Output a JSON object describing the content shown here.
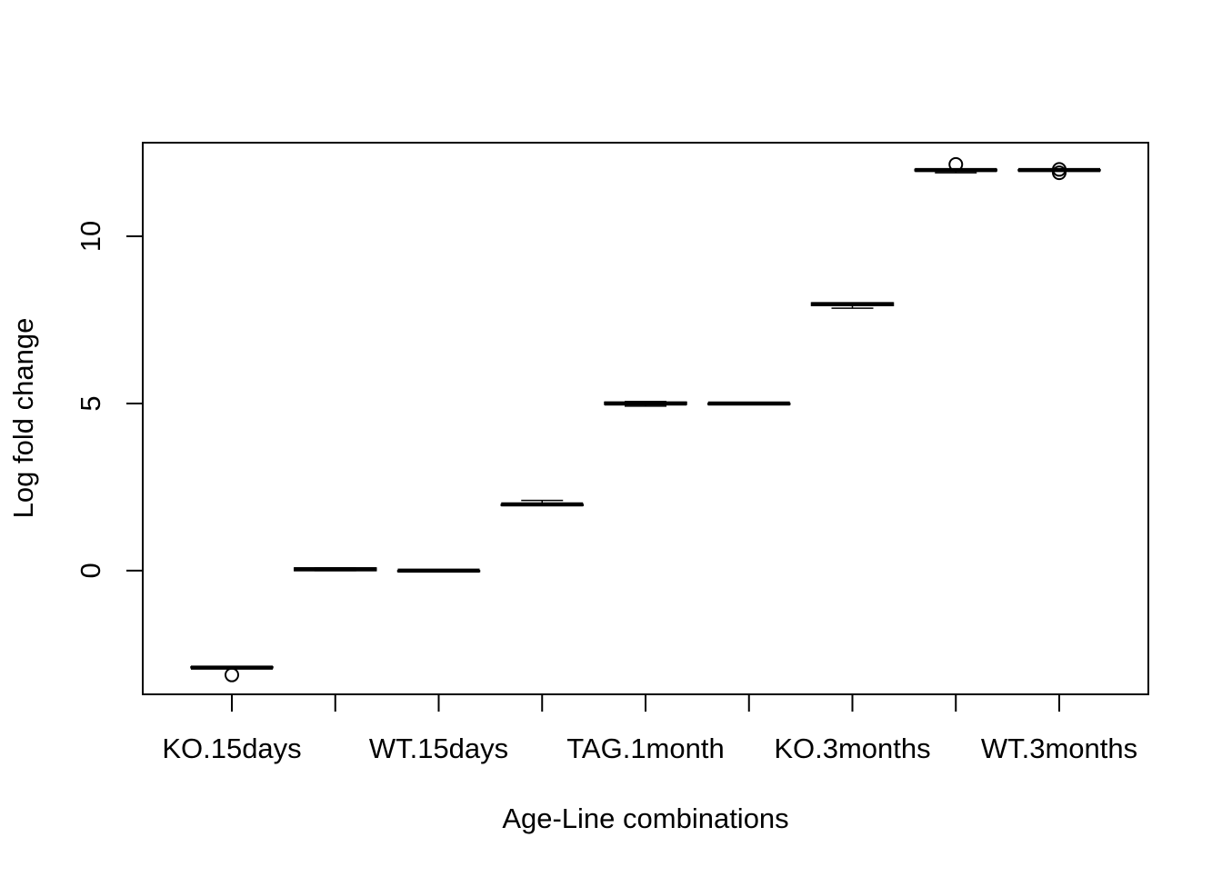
{
  "chart_data": {
    "type": "box",
    "title": "",
    "xlabel": "Age-Line combinations",
    "ylabel": "Log fold change",
    "ylim": [
      -3.7,
      12.8
    ],
    "y_ticks": [
      0,
      5,
      10
    ],
    "y_tick_labels": [
      "0",
      "5",
      "10"
    ],
    "categories": [
      "KO.15days",
      "",
      "WT.15days",
      "",
      "TAG.1month",
      "",
      "KO.3months",
      "",
      "WT.3months"
    ],
    "x_tick_labels": [
      "KO.15days",
      "WT.15days",
      "TAG.1month",
      "KO.3months",
      "WT.3months"
    ],
    "boxes": [
      {
        "min": -2.9,
        "q1": -2.9,
        "median": -2.9,
        "q3": -2.88,
        "max": -2.88,
        "outliers": [
          -3.12
        ]
      },
      {
        "min": 0.0,
        "q1": 0.0,
        "median": 0.04,
        "q3": 0.08,
        "max": 0.08,
        "outliers": []
      },
      {
        "min": 0.0,
        "q1": 0.0,
        "median": 0.0,
        "q3": 0.0,
        "max": 0.0,
        "outliers": []
      },
      {
        "min": 1.95,
        "q1": 1.95,
        "median": 1.98,
        "q3": 1.98,
        "max": 2.1,
        "outliers": []
      },
      {
        "min": 4.92,
        "q1": 4.97,
        "median": 5.0,
        "q3": 5.04,
        "max": 5.06,
        "outliers": []
      },
      {
        "min": 5.0,
        "q1": 5.0,
        "median": 5.0,
        "q3": 5.0,
        "max": 5.0,
        "outliers": []
      },
      {
        "min": 7.85,
        "q1": 7.93,
        "median": 7.97,
        "q3": 8.01,
        "max": 8.01,
        "outliers": []
      },
      {
        "min": 11.9,
        "q1": 11.96,
        "median": 11.98,
        "q3": 12.0,
        "max": 12.0,
        "outliers": [
          12.15
        ]
      },
      {
        "min": 11.98,
        "q1": 11.98,
        "median": 11.98,
        "q3": 11.99,
        "max": 11.99,
        "outliers": [
          11.9,
          12.0
        ]
      }
    ],
    "grid": false,
    "legend": "none"
  }
}
